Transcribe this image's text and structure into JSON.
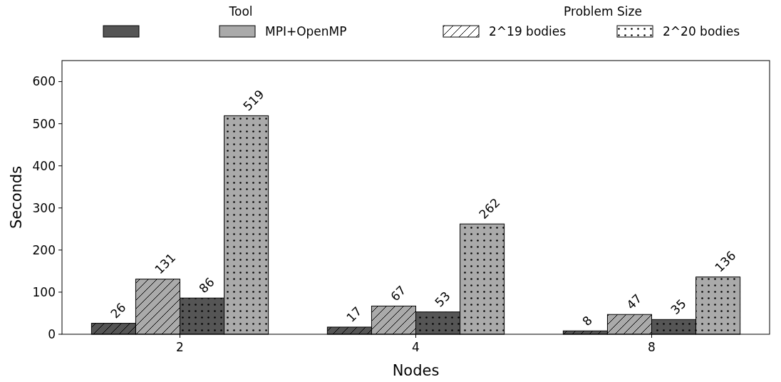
{
  "chart_data": {
    "type": "bar",
    "xlabel": "Nodes",
    "ylabel": "Seconds",
    "categories": [
      "2",
      "4",
      "8"
    ],
    "series": [
      {
        "color": "#555555",
        "values": [
          26,
          17,
          8
        ]
      },
      {
        "name": "MPI+OpenMP",
        "color": "#aaaaaa",
        "values": [
          131,
          67,
          47
        ]
      },
      {
        "color": "#555555",
        "values": [
          86,
          53,
          35
        ]
      },
      {
        "color": "#aaaaaa",
        "values": [
          519,
          262,
          136
        ]
      }
    ],
    "ylim": [
      0,
      650
    ],
    "yticks": [
      0,
      100,
      200,
      300,
      400,
      500,
      600
    ],
    "grid": false,
    "data_labels": true,
    "legend": "top",
    "legend_title": "Tool",
    "annotations": [
      "Problem Size",
      "2^19 bodies",
      "2^20 bodies"
    ]
  }
}
